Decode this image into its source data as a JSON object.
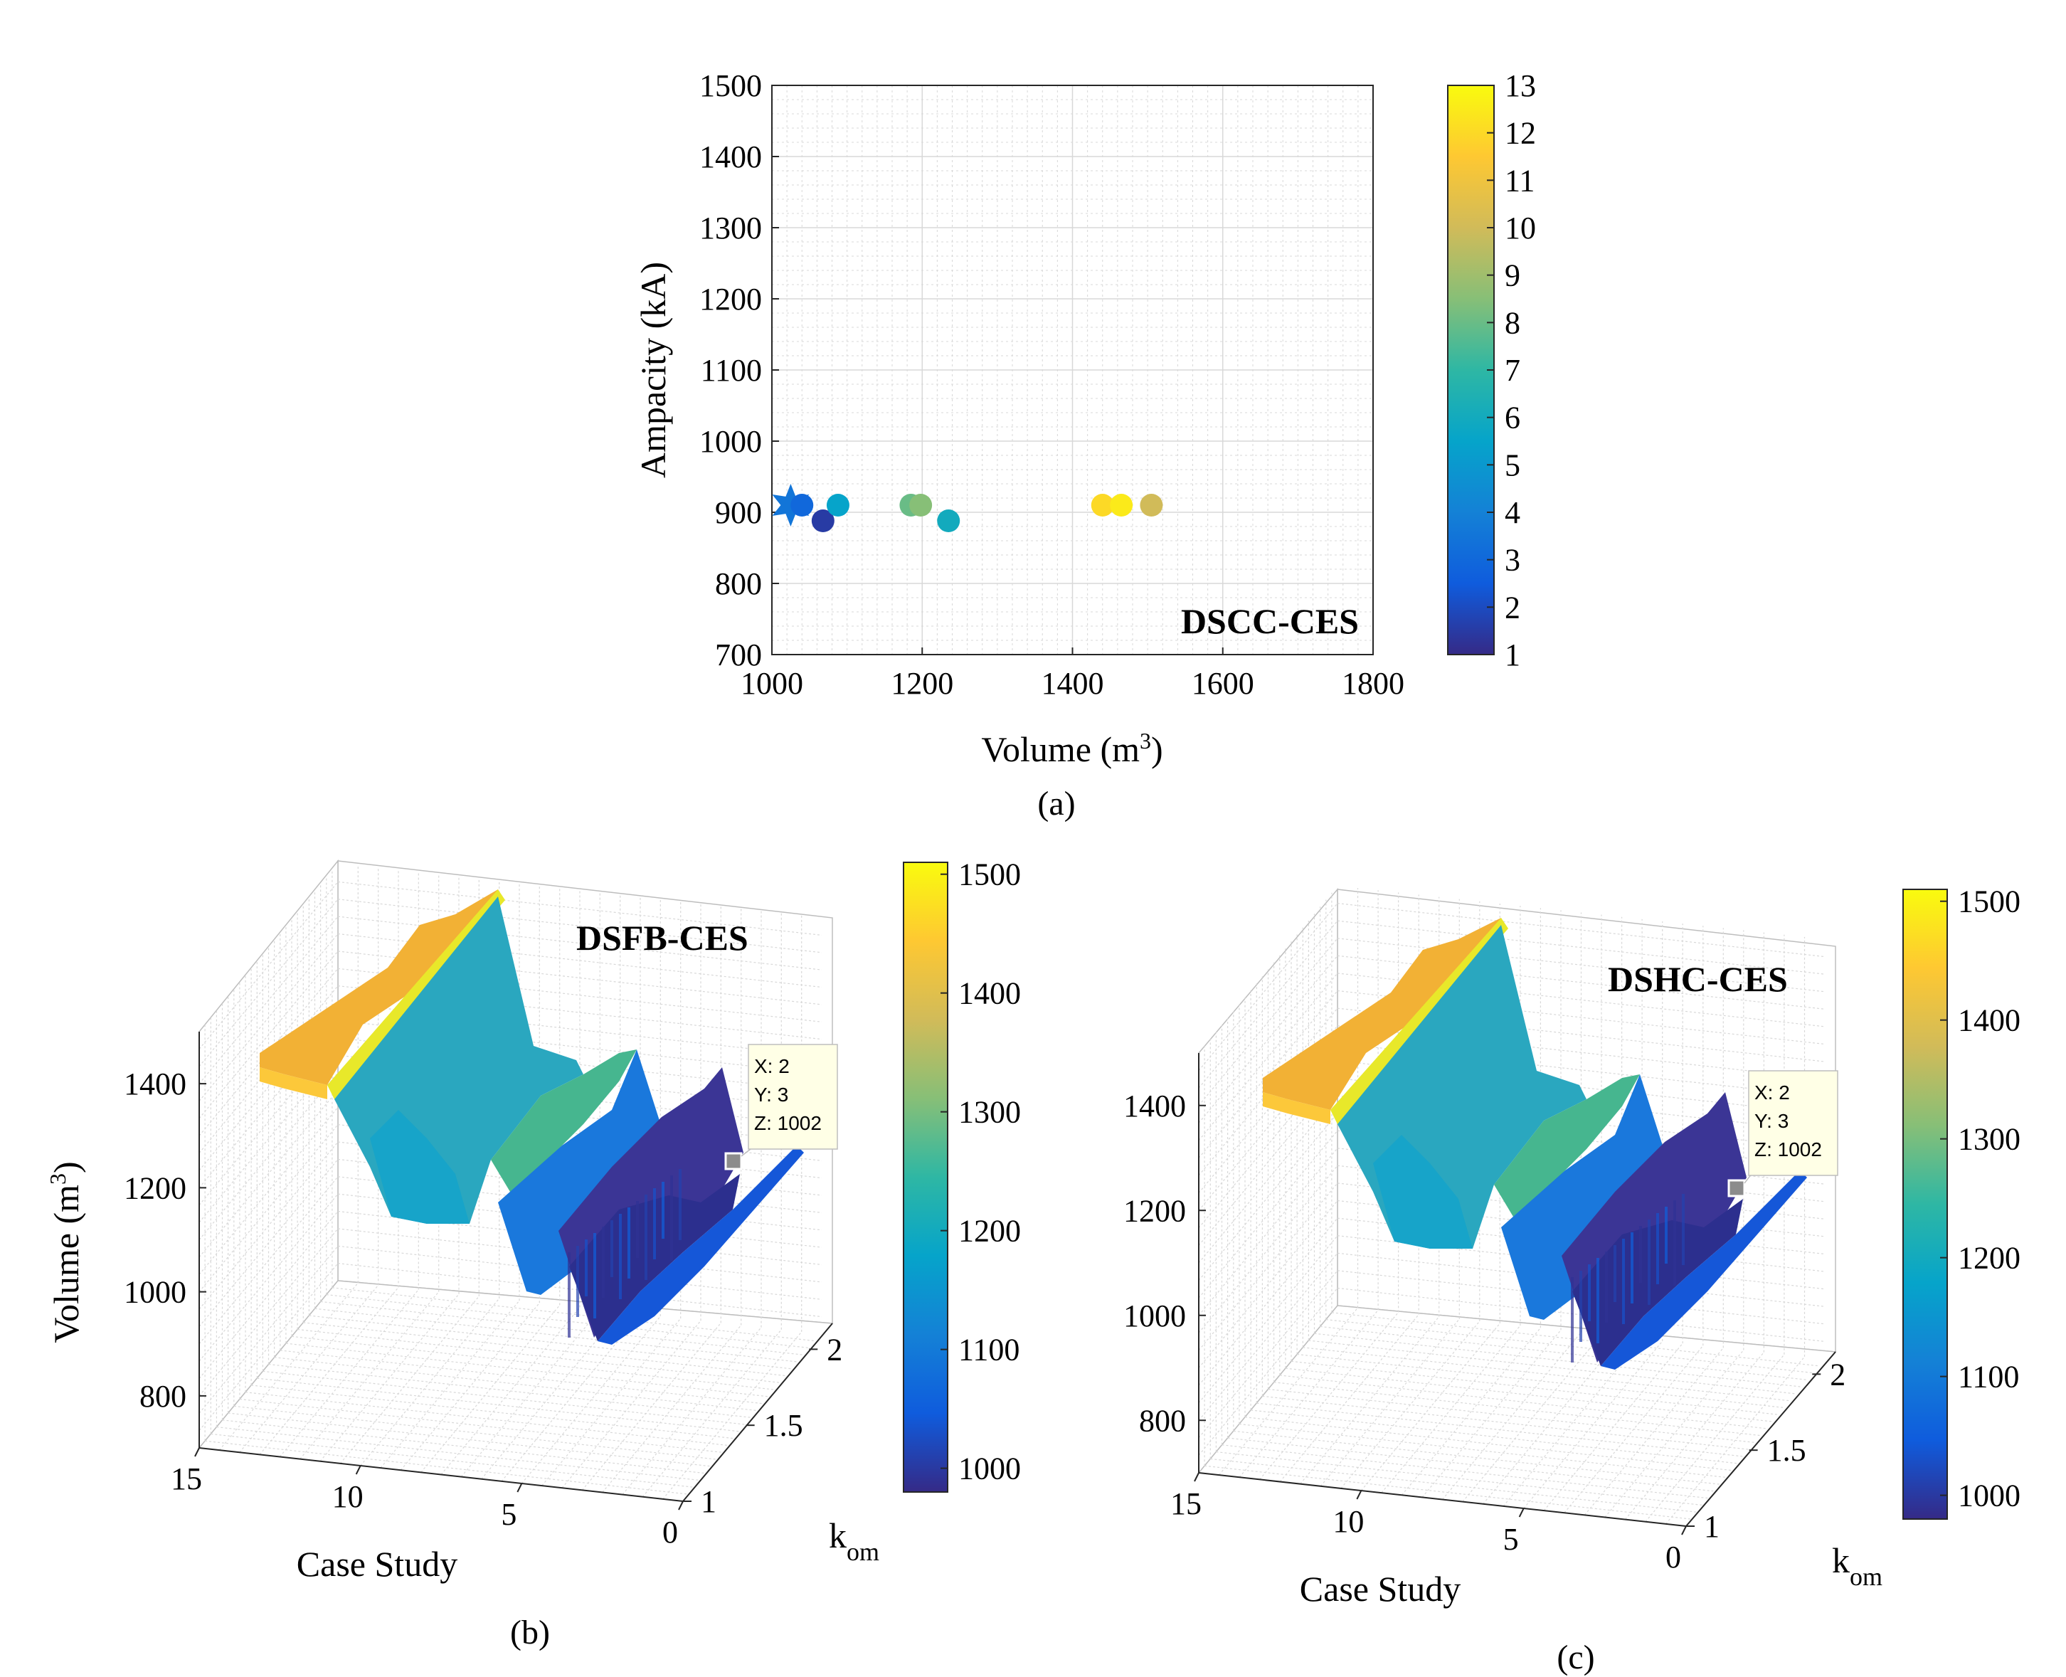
{
  "chart_data": [
    {
      "panel": "a",
      "type": "scatter",
      "title": "",
      "annotation": "DSCC-CES",
      "xlabel": "Volume (m",
      "xlabel_sup": "3",
      "xlabel_suffix": ")",
      "ylabel": "Ampacity (kA)",
      "caption": "(a)",
      "xlim": [
        1000,
        1800
      ],
      "ylim": [
        700,
        1500
      ],
      "xticks": [
        1000,
        1200,
        1400,
        1600,
        1800
      ],
      "yticks": [
        700,
        800,
        900,
        1000,
        1100,
        1200,
        1300,
        1400,
        1500
      ],
      "grid": true,
      "colorbar": {
        "min": 1,
        "max": 13,
        "ticks": [
          1,
          2,
          3,
          4,
          5,
          6,
          7,
          8,
          9,
          10,
          11,
          12,
          13
        ]
      },
      "points": [
        {
          "x": 1025,
          "y": 910,
          "c": 3.5,
          "marker": "star"
        },
        {
          "x": 1040,
          "y": 910,
          "c": 3,
          "marker": "circle"
        },
        {
          "x": 1068,
          "y": 888,
          "c": 1.5,
          "marker": "circle"
        },
        {
          "x": 1088,
          "y": 910,
          "c": 5.5,
          "marker": "circle"
        },
        {
          "x": 1185,
          "y": 910,
          "c": 8,
          "marker": "circle"
        },
        {
          "x": 1198,
          "y": 910,
          "c": 8.5,
          "marker": "circle"
        },
        {
          "x": 1235,
          "y": 888,
          "c": 6,
          "marker": "circle"
        },
        {
          "x": 1440,
          "y": 910,
          "c": 12,
          "marker": "circle"
        },
        {
          "x": 1465,
          "y": 910,
          "c": 12.5,
          "marker": "circle"
        },
        {
          "x": 1505,
          "y": 910,
          "c": 10,
          "marker": "circle"
        }
      ]
    },
    {
      "panel": "b",
      "type": "surface",
      "annotation": "DSFB-CES",
      "xlabel": "Case Study",
      "ylabel": "k",
      "ylabel_sub": "om",
      "zlabel": "Volume (m",
      "zlabel_sup": "3",
      "zlabel_suffix": ")",
      "caption": "(b)",
      "xticks": [
        15,
        10,
        5,
        0
      ],
      "yticks": [
        1,
        1.5,
        2
      ],
      "zticks": [
        800,
        1000,
        1200,
        1400
      ],
      "colorbar": {
        "min": 1000,
        "max": 1500,
        "ticks": [
          1000,
          1100,
          1200,
          1300,
          1400,
          1500
        ]
      },
      "datatip": {
        "x": "X: 2",
        "y": "Y: 3",
        "z": "Z: 1002"
      },
      "levels": [
        1420,
        1420,
        1415,
        1420,
        1150,
        1150,
        1145,
        1150,
        1350,
        1100,
        1060,
        1002,
        1002,
        1002,
        1060,
        1090
      ]
    },
    {
      "panel": "c",
      "type": "surface",
      "annotation": "DSHC-CES",
      "xlabel": "Case Study",
      "ylabel": "k",
      "ylabel_sub": "om",
      "zlabel": "",
      "caption": "(c)",
      "xticks": [
        15,
        10,
        5,
        0
      ],
      "yticks": [
        1,
        1.5,
        2
      ],
      "zticks": [
        800,
        1000,
        1200,
        1400
      ],
      "colorbar": {
        "min": 1000,
        "max": 1500,
        "ticks": [
          1000,
          1100,
          1200,
          1300,
          1400,
          1500
        ]
      },
      "datatip": {
        "x": "X: 2",
        "y": "Y: 3",
        "z": "Z: 1002"
      },
      "levels": [
        1420,
        1420,
        1415,
        1420,
        1150,
        1150,
        1145,
        1150,
        1350,
        1100,
        1060,
        1002,
        1002,
        1002,
        1060,
        1090
      ]
    }
  ],
  "colors": {
    "parula": [
      "#352a87",
      "#0f5cdd",
      "#1481d6",
      "#06a4ca",
      "#2eb7a4",
      "#87bf77",
      "#d1bb59",
      "#fec832",
      "#f9fb0e"
    ],
    "grid": "#d8d8d8",
    "axis": "#262626",
    "datatip_bg": "#ffffe6"
  }
}
